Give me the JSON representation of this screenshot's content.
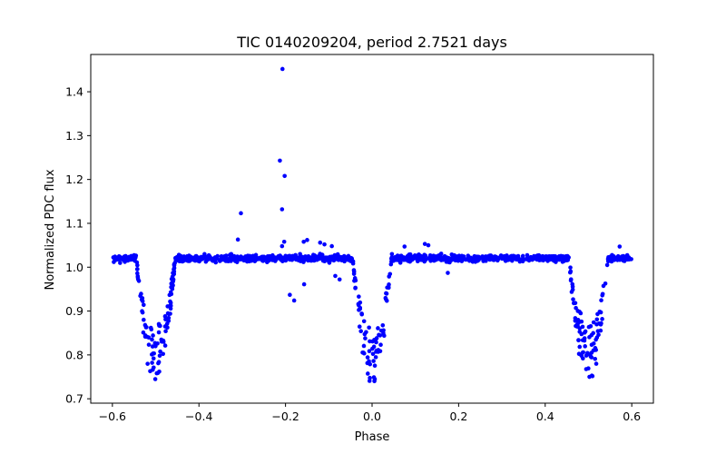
{
  "chart_data": {
    "type": "scatter",
    "title": "TIC 0140209204, period 2.7521 days",
    "xlabel": "Phase",
    "ylabel": "Normalized PDC flux",
    "xlim": [
      -0.65,
      0.65
    ],
    "ylim": [
      0.69,
      1.485
    ],
    "x_ticks": [
      -0.6,
      -0.4,
      -0.2,
      0.0,
      0.2,
      0.4,
      0.6
    ],
    "x_tick_labels": [
      "−0.6",
      "−0.4",
      "−0.2",
      "0.0",
      "0.2",
      "0.4",
      "0.6"
    ],
    "y_ticks": [
      0.7,
      0.8,
      0.9,
      1.0,
      1.1,
      1.2,
      1.3,
      1.4
    ],
    "y_tick_labels": [
      "0.7",
      "0.8",
      "0.9",
      "1.0",
      "1.1",
      "1.2",
      "1.3",
      "1.4"
    ],
    "grid": false,
    "legend": "none",
    "marker_color": "#0000ff",
    "baseline_flux": 1.02,
    "eclipse_centers": [
      -0.5,
      0.0,
      0.5
    ],
    "eclipse_min_flux": 0.735,
    "eclipse_half_width": 0.045,
    "phase_range": [
      -0.6,
      0.6
    ],
    "outliers": [
      {
        "x": -0.207,
        "y": 1.452
      },
      {
        "x": -0.213,
        "y": 1.243
      },
      {
        "x": -0.202,
        "y": 1.208
      },
      {
        "x": -0.208,
        "y": 1.132
      },
      {
        "x": -0.303,
        "y": 1.123
      },
      {
        "x": -0.31,
        "y": 1.063
      },
      {
        "x": -0.203,
        "y": 1.058
      },
      {
        "x": -0.158,
        "y": 1.058
      },
      {
        "x": -0.15,
        "y": 1.062
      },
      {
        "x": -0.12,
        "y": 1.056
      },
      {
        "x": -0.11,
        "y": 1.052
      },
      {
        "x": -0.093,
        "y": 1.048
      },
      {
        "x": -0.208,
        "y": 1.048
      },
      {
        "x": 0.075,
        "y": 1.047
      },
      {
        "x": 0.122,
        "y": 1.053
      },
      {
        "x": 0.13,
        "y": 1.05
      },
      {
        "x": 0.572,
        "y": 1.047
      },
      {
        "x": -0.19,
        "y": 0.937
      },
      {
        "x": -0.18,
        "y": 0.924
      },
      {
        "x": -0.157,
        "y": 0.961
      },
      {
        "x": 0.175,
        "y": 0.987
      },
      {
        "x": -0.085,
        "y": 0.98
      },
      {
        "x": -0.075,
        "y": 0.972
      }
    ]
  }
}
